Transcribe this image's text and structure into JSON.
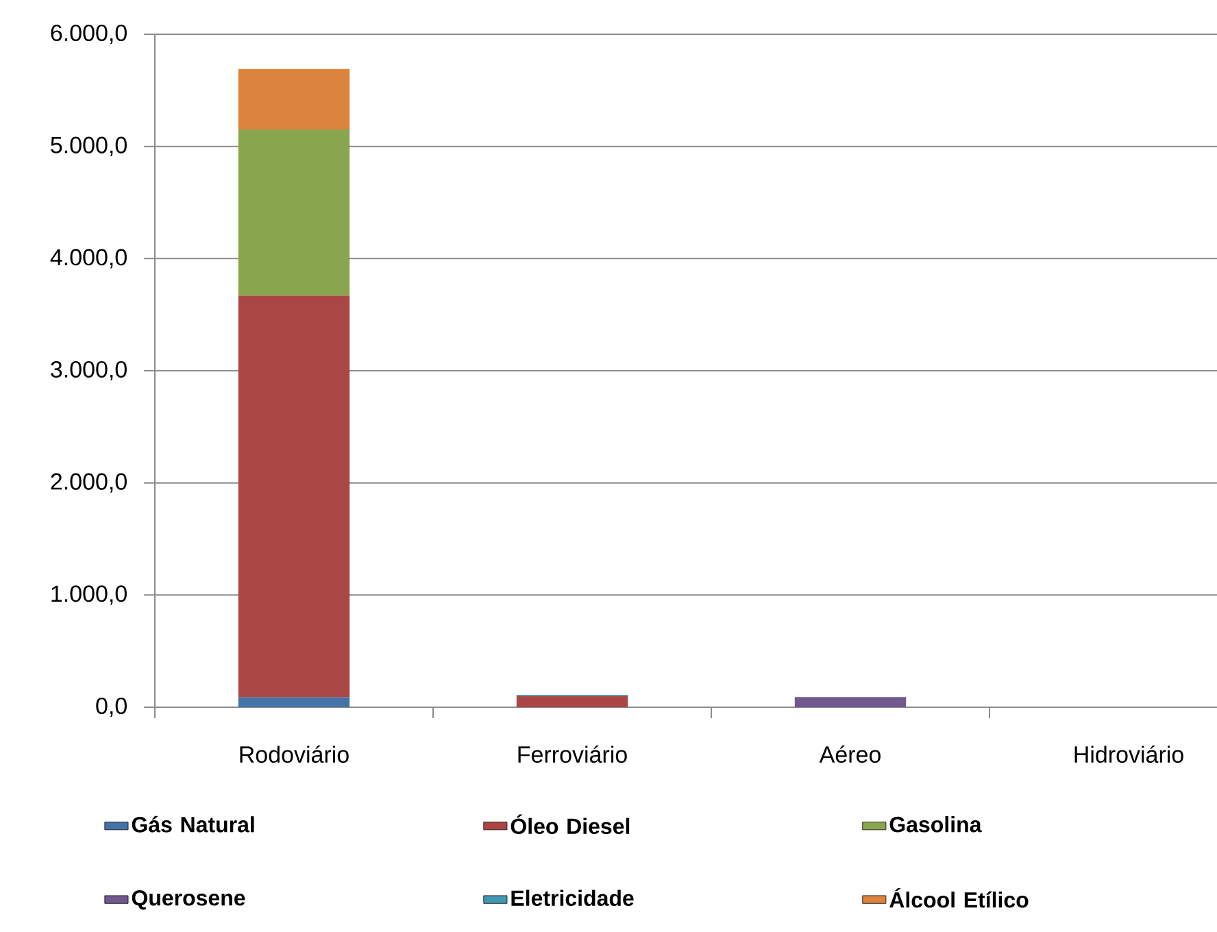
{
  "chart_data": {
    "type": "bar",
    "stacked": true,
    "categories": [
      "Rodoviário",
      "Ferroviário",
      "Aéreo",
      "Hidroviário"
    ],
    "series": [
      {
        "name": "Gás Natural",
        "color": "#4572a7",
        "values": [
          90,
          0,
          0,
          0
        ]
      },
      {
        "name": "Óleo Diesel",
        "color": "#aa4643",
        "values": [
          3580,
          100,
          0,
          0
        ]
      },
      {
        "name": "Gasolina",
        "color": "#89a54e",
        "values": [
          1480,
          0,
          0,
          0
        ]
      },
      {
        "name": "Querosene",
        "color": "#71588f",
        "values": [
          0,
          0,
          90,
          0
        ]
      },
      {
        "name": "Eletricidade",
        "color": "#4198af",
        "values": [
          0,
          10,
          0,
          0
        ]
      },
      {
        "name": "Álcool Etílico",
        "color": "#db843d",
        "values": [
          540,
          0,
          0,
          0
        ]
      }
    ],
    "ylim": [
      0,
      6000
    ],
    "yticks": [
      {
        "value": 0,
        "label": "0,0"
      },
      {
        "value": 1000,
        "label": "1.000,0"
      },
      {
        "value": 2000,
        "label": "2.000,0"
      },
      {
        "value": 3000,
        "label": "3.000,0"
      },
      {
        "value": 4000,
        "label": "4.000,0"
      },
      {
        "value": 5000,
        "label": "5.000,0"
      },
      {
        "value": 6000,
        "label": "6.000,0"
      }
    ],
    "grid": "y",
    "legend": "bottom"
  }
}
